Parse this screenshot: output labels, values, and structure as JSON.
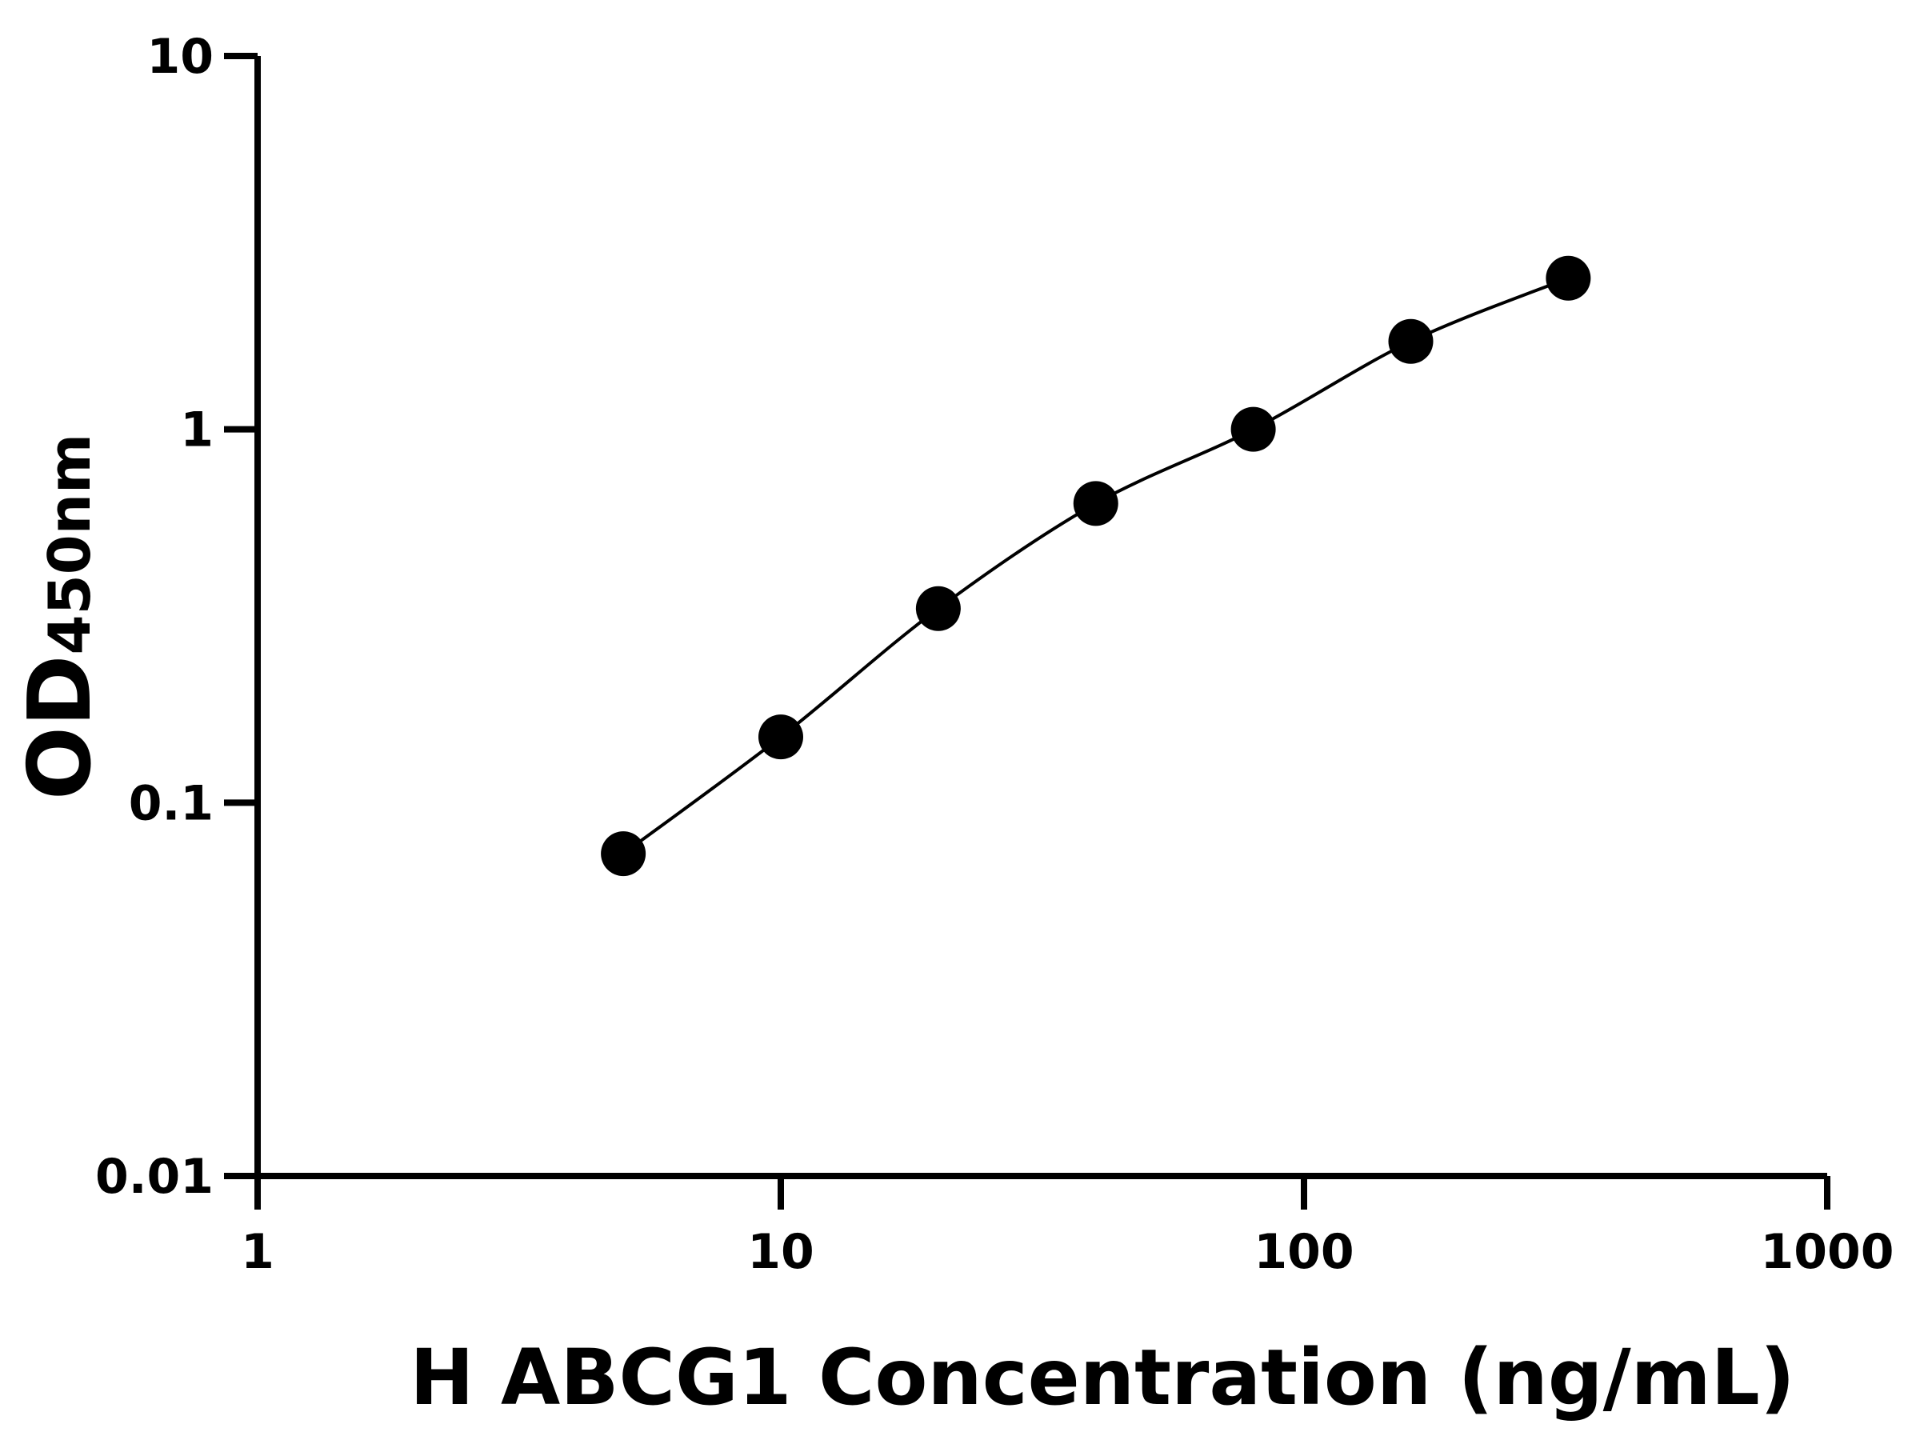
{
  "chart_data": {
    "type": "scatter",
    "title": "",
    "xlabel": "H ABCG1 Concentration (ng/mL)",
    "ylabel": "OD",
    "ylabel_subscript": "450nm",
    "x_scale": "log",
    "y_scale": "log",
    "xlim": [
      1,
      1000
    ],
    "ylim": [
      0.01,
      10
    ],
    "x_ticks": [
      1,
      10,
      100,
      1000
    ],
    "x_tick_labels": [
      "1",
      "10",
      "100",
      "1000"
    ],
    "y_ticks": [
      0.01,
      0.1,
      1,
      10
    ],
    "y_tick_labels": [
      "0.01",
      "0.1",
      "1",
      "10"
    ],
    "grid": false,
    "series": [
      {
        "x": [
          5,
          10,
          20,
          40,
          80,
          160,
          320
        ],
        "y": [
          0.073,
          0.15,
          0.331,
          0.633,
          1.0,
          1.72,
          2.54
        ],
        "marker": "filled-circle",
        "fit_line": true
      }
    ],
    "colors": {
      "marker": "#000000",
      "line": "#000000",
      "axis": "#000000"
    }
  }
}
